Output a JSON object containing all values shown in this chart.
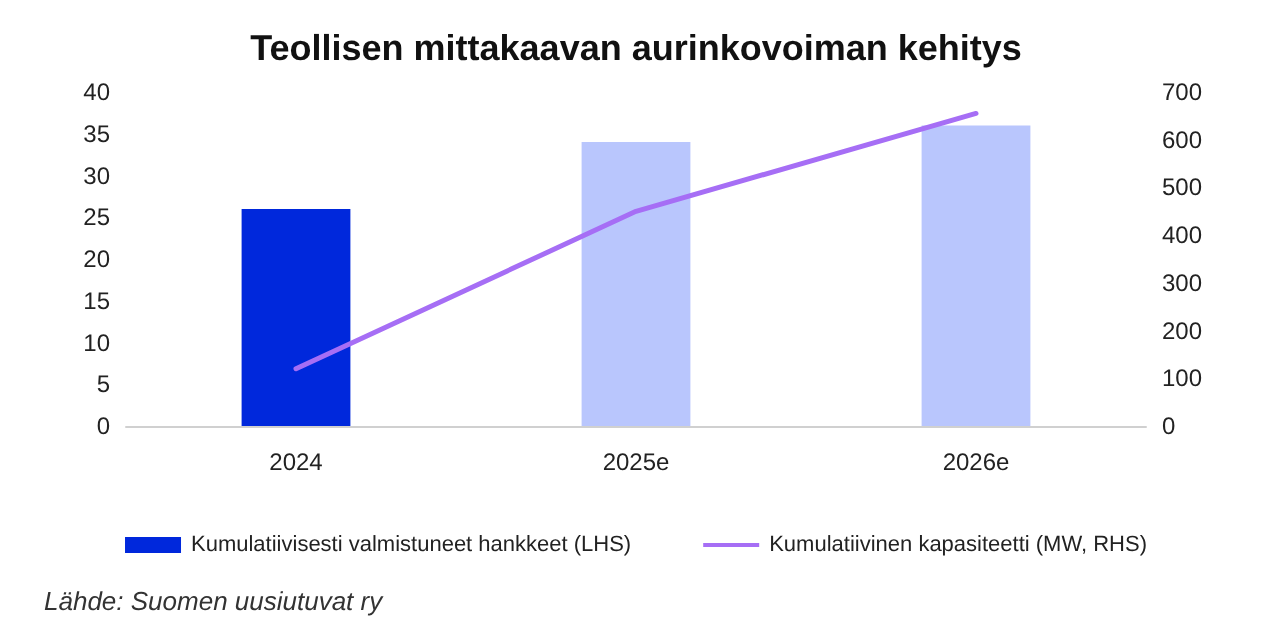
{
  "chart_data": {
    "type": "bar",
    "title": "Teollisen mittakaavan aurinkovoiman kehitys",
    "categories": [
      "2024",
      "2025e",
      "2026e"
    ],
    "series": [
      {
        "name": "Kumulatiivisesti valmistuneet hankkeet (LHS)",
        "color": "#0028dc",
        "colors": [
          "#0028dc",
          "#b9c6fd",
          "#b9c6fd"
        ],
        "values": [
          26,
          34,
          36
        ]
      },
      {
        "name": "Kumulatiivinen kapasiteetti (MW, RHS)",
        "type": "line",
        "axis": "y2",
        "color": "#a66ef5",
        "values": [
          120,
          450,
          655
        ]
      }
    ],
    "ylim": [
      0,
      40
    ],
    "yticks": [
      0,
      5,
      10,
      15,
      20,
      25,
      30,
      35,
      40
    ],
    "y2lim": [
      0,
      700
    ],
    "y2ticks": [
      0,
      100,
      200,
      300,
      400,
      500,
      600,
      700
    ],
    "grid": false,
    "legend": "bottom",
    "marker": "none",
    "line_style": "solid",
    "annotations": [
      "Lähde: Suomen uusiutuvat ry"
    ]
  }
}
